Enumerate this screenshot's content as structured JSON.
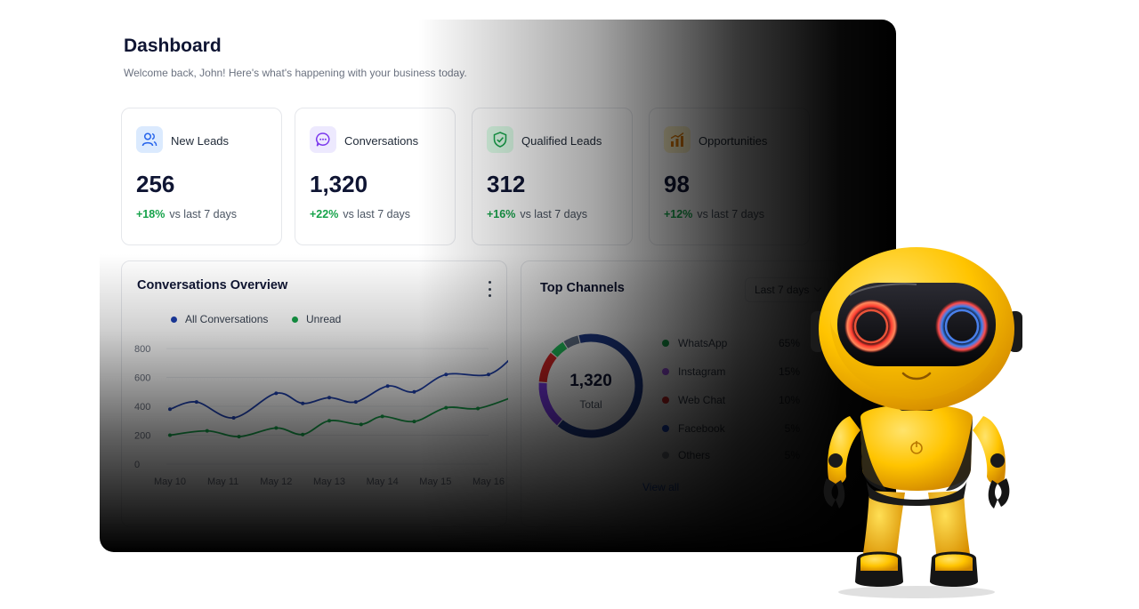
{
  "header": {
    "title": "Dashboard",
    "subtitle": "Welcome back, John! Here's what's happening with your business today."
  },
  "kpis": [
    {
      "label": "New Leads",
      "value": "256",
      "change": "+18%",
      "comparison": "vs last 7 days",
      "icon": "users-icon",
      "icon_color": "#2563eb",
      "icon_bg": "#dbeafe"
    },
    {
      "label": "Conversations",
      "value": "1,320",
      "change": "+22%",
      "comparison": "vs last 7 days",
      "icon": "chat-bubble-icon",
      "icon_color": "#7c3aed",
      "icon_bg": "#ede9fe"
    },
    {
      "label": "Qualified Leads",
      "value": "312",
      "change": "+16%",
      "comparison": "vs last 7 days",
      "icon": "shield-check-icon",
      "icon_color": "#16a34a",
      "icon_bg": "#dcfce7"
    },
    {
      "label": "Opportunities",
      "value": "98",
      "change": "+12%",
      "comparison": "vs last 7 days",
      "icon": "bar-growth-icon",
      "icon_color": "#d97706",
      "icon_bg": "#fef3c7"
    }
  ],
  "overview": {
    "title": "Conversations Overview",
    "menu_icon": "kebab-menu-icon"
  },
  "channels": {
    "title": "Top Channels",
    "range": "Last 7 days",
    "total_value": "1,320",
    "total_label": "Total",
    "view_all": "View all",
    "items": [
      {
        "name": "WhatsApp",
        "percent": "65%",
        "value": 65,
        "color": "#1e3a8a"
      },
      {
        "name": "Instagram",
        "percent": "15%",
        "value": 15,
        "color": "#7c3aed"
      },
      {
        "name": "Web Chat",
        "percent": "10%",
        "value": 10,
        "color": "#dc2626"
      },
      {
        "name": "Facebook",
        "percent": "5%",
        "value": 5,
        "color": "#1d4ed8"
      },
      {
        "name": "Others",
        "percent": "5%",
        "value": 5,
        "color": "#9ca3af"
      }
    ],
    "ring_colors": {
      "WhatsApp": "#1e3a8a",
      "Instagram": "#7c3aed",
      "Web Chat": "#dc2626",
      "Facebook": "#22c55e",
      "Others": "#64748b"
    }
  },
  "chart_data": [
    {
      "type": "line",
      "x": [
        "May 10",
        "May 11",
        "May 12",
        "May 13",
        "May 14",
        "May 15",
        "May 16"
      ],
      "series": [
        {
          "name": "All Conversations",
          "color": "#1e40af",
          "points": [
            [
              0,
              380
            ],
            [
              0.5,
              430
            ],
            [
              1.2,
              320
            ],
            [
              2.0,
              490
            ],
            [
              2.5,
              420
            ],
            [
              3.0,
              460
            ],
            [
              3.5,
              430
            ],
            [
              4.1,
              540
            ],
            [
              4.6,
              500
            ],
            [
              5.2,
              620
            ],
            [
              6.0,
              620
            ],
            [
              6.5,
              760
            ]
          ]
        },
        {
          "name": "Unread",
          "color": "#16a34a",
          "points": [
            [
              0,
              200
            ],
            [
              0.7,
              230
            ],
            [
              1.3,
              190
            ],
            [
              2.0,
              250
            ],
            [
              2.5,
              205
            ],
            [
              3.0,
              300
            ],
            [
              3.6,
              275
            ],
            [
              4.0,
              330
            ],
            [
              4.6,
              295
            ],
            [
              5.2,
              390
            ],
            [
              5.8,
              385
            ],
            [
              6.5,
              470
            ]
          ]
        }
      ],
      "yticks": [
        0,
        200,
        400,
        600,
        800
      ],
      "ylim": [
        0,
        800
      ],
      "legend": "top-left",
      "grid": "horizontal"
    },
    {
      "type": "pie",
      "labels": [
        "WhatsApp",
        "Instagram",
        "Web Chat",
        "Facebook",
        "Others"
      ],
      "values": [
        65,
        15,
        10,
        5,
        5
      ],
      "donut": true
    }
  ]
}
